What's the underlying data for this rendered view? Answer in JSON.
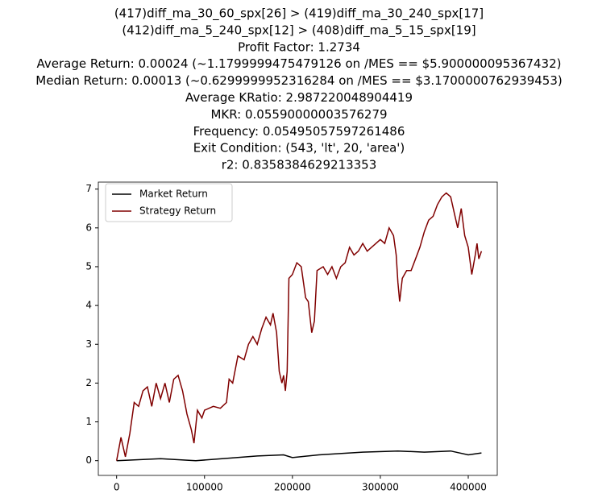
{
  "chart_data": {
    "type": "line",
    "title": [
      "(417)diff_ma_30_60_spx[26] > (419)diff_ma_30_240_spx[17]",
      "(412)diff_ma_5_240_spx[12] > (408)diff_ma_5_15_spx[19]",
      "Profit Factor: 1.2734",
      "Average Return: 0.00024 (~1.1799999475479126 on /MES == $5.900000095367432)",
      "Median Return: 0.00013 (~0.6299999952316284 on /MES == $3.1700000762939453)",
      "Average KRatio: 2.987220048904419",
      "MKR: 0.05590000003576279",
      "Frequency: 0.05495057597261486",
      "Exit Condition: (543, 'lt', 20, 'area')",
      "r2: 0.8358384629213353"
    ],
    "series": [
      {
        "name": "Market Return",
        "color": "#000000",
        "x": [
          0,
          50000,
          90000,
          120000,
          160000,
          190000,
          200000,
          230000,
          280000,
          320000,
          350000,
          380000,
          400000,
          415000
        ],
        "values": [
          0,
          0.05,
          0.0,
          0.05,
          0.12,
          0.15,
          0.08,
          0.15,
          0.22,
          0.25,
          0.22,
          0.25,
          0.15,
          0.2
        ]
      },
      {
        "name": "Strategy Return",
        "color": "#800000",
        "x": [
          0,
          5000,
          10000,
          15000,
          20000,
          25000,
          30000,
          35000,
          40000,
          45000,
          50000,
          55000,
          60000,
          65000,
          70000,
          75000,
          80000,
          85000,
          88000,
          92000,
          97000,
          100000,
          110000,
          118000,
          125000,
          128000,
          132000,
          138000,
          145000,
          150000,
          155000,
          160000,
          165000,
          170000,
          175000,
          178000,
          182000,
          185000,
          188000,
          190000,
          192000,
          194000,
          196000,
          200000,
          205000,
          210000,
          215000,
          218000,
          222000,
          225000,
          228000,
          235000,
          240000,
          245000,
          250000,
          255000,
          260000,
          265000,
          270000,
          275000,
          280000,
          285000,
          290000,
          300000,
          305000,
          310000,
          315000,
          318000,
          320000,
          322000,
          325000,
          330000,
          335000,
          340000,
          345000,
          350000,
          355000,
          360000,
          365000,
          370000,
          375000,
          380000,
          385000,
          388000,
          392000,
          396000,
          400000,
          404000,
          408000,
          410000,
          412000,
          415000
        ],
        "values": [
          0,
          0.6,
          0.1,
          0.7,
          1.5,
          1.4,
          1.8,
          1.9,
          1.4,
          2.0,
          1.6,
          2.0,
          1.5,
          2.1,
          2.2,
          1.8,
          1.2,
          0.8,
          0.45,
          1.3,
          1.1,
          1.3,
          1.4,
          1.35,
          1.5,
          2.1,
          2.0,
          2.7,
          2.6,
          3.0,
          3.2,
          3.0,
          3.4,
          3.7,
          3.5,
          3.8,
          3.3,
          2.3,
          2.0,
          2.2,
          1.8,
          2.3,
          4.7,
          4.8,
          5.1,
          5.0,
          4.2,
          4.1,
          3.3,
          3.6,
          4.9,
          5.0,
          4.8,
          5.0,
          4.7,
          5.0,
          5.1,
          5.5,
          5.3,
          5.4,
          5.6,
          5.4,
          5.5,
          5.7,
          5.6,
          6.0,
          5.8,
          5.3,
          4.6,
          4.1,
          4.7,
          4.9,
          4.9,
          5.2,
          5.5,
          5.9,
          6.2,
          6.3,
          6.6,
          6.8,
          6.9,
          6.8,
          6.3,
          6.0,
          6.5,
          5.8,
          5.5,
          4.8,
          5.3,
          5.6,
          5.2,
          5.4
        ]
      }
    ],
    "xlim": [
      -20800,
      433000
    ],
    "ylim": [
      -0.38,
      7.18
    ],
    "xticks": [
      0,
      100000,
      200000,
      300000,
      400000
    ],
    "yticks": [
      0,
      1,
      2,
      3,
      4,
      5,
      6,
      7
    ],
    "legend": "upper left",
    "grid": false
  }
}
